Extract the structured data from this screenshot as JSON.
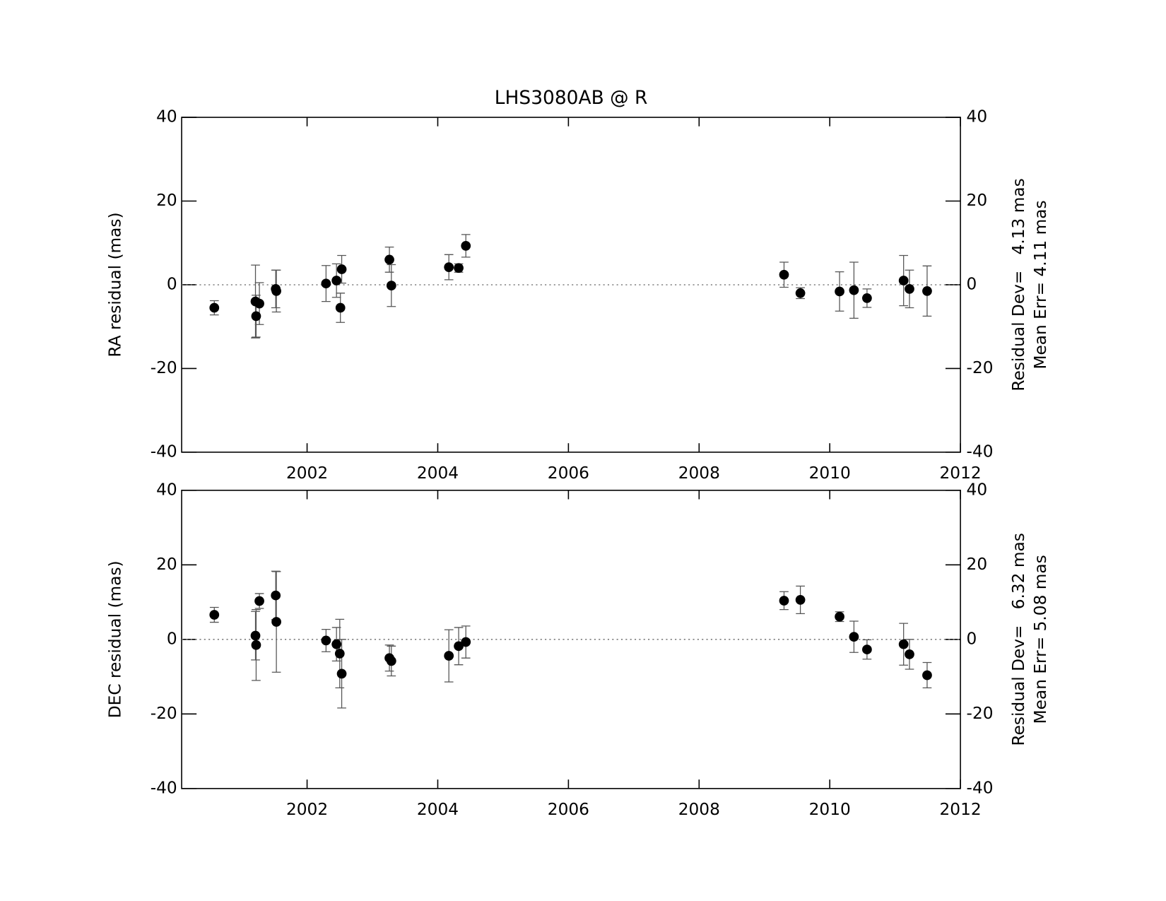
{
  "chart_data": [
    {
      "type": "scatter",
      "title": "LHS3080AB @ R",
      "y_label": "RA residual (mas)",
      "annotations": [
        "Residual Dev=   4.13 mas",
        "Mean Err= 4.11 mas"
      ],
      "color": "#000000",
      "error_color": "#555555",
      "x": [
        2000.58,
        2001.21,
        2001.22,
        2001.27,
        2001.52,
        2001.53,
        2002.29,
        2002.45,
        2002.51,
        2002.53,
        2003.26,
        2003.29,
        2004.17,
        2004.32,
        2004.43,
        2009.3,
        2009.55,
        2010.15,
        2010.37,
        2010.57,
        2011.13,
        2011.22,
        2011.49
      ],
      "values": [
        -5.5,
        -4.0,
        -7.5,
        -4.5,
        -1.0,
        -1.5,
        0.3,
        1.0,
        -5.5,
        3.7,
        6.0,
        -0.2,
        4.2,
        4.0,
        9.3,
        2.4,
        -2.0,
        -1.6,
        -1.3,
        -3.2,
        1.0,
        -1.0,
        -1.5
      ],
      "errors": [
        1.7,
        8.7,
        5.0,
        5.0,
        4.5,
        5.0,
        4.3,
        4.0,
        3.5,
        3.3,
        3.0,
        5.0,
        3.0,
        1.0,
        2.7,
        3.0,
        1.3,
        4.7,
        6.7,
        2.2,
        6.0,
        4.5,
        6.0
      ],
      "xlim": [
        2000.08,
        2012
      ],
      "xticks": [
        2002,
        2004,
        2006,
        2008,
        2010,
        2012
      ],
      "ylim": [
        -40,
        40
      ],
      "yticks": [
        -40,
        -20,
        0,
        20,
        40
      ]
    },
    {
      "type": "scatter",
      "y_label": "DEC residual (mas)",
      "annotations": [
        "Residual Dev=   6.32 mas",
        "Mean Err= 5.08 mas"
      ],
      "color": "#000000",
      "error_color": "#555555",
      "x": [
        2000.58,
        2001.21,
        2001.22,
        2001.27,
        2001.52,
        2001.53,
        2002.29,
        2002.45,
        2002.5,
        2002.53,
        2003.26,
        2003.29,
        2004.17,
        2004.32,
        2004.43,
        2009.3,
        2009.55,
        2010.15,
        2010.37,
        2010.57,
        2011.13,
        2011.22,
        2011.49
      ],
      "values": [
        6.6,
        1.0,
        -1.5,
        10.3,
        11.8,
        4.7,
        -0.3,
        -1.3,
        -3.8,
        -9.2,
        -5.0,
        -5.8,
        -4.4,
        -1.8,
        -0.7,
        10.4,
        10.6,
        6.1,
        0.7,
        -2.7,
        -1.3,
        -4.0,
        -9.6
      ],
      "errors": [
        2.0,
        6.5,
        9.5,
        2.0,
        6.5,
        13.5,
        3.0,
        4.5,
        9.2,
        9.2,
        3.5,
        4.0,
        7.0,
        5.0,
        4.3,
        2.4,
        3.7,
        1.3,
        4.2,
        2.6,
        5.6,
        4.0,
        3.4
      ],
      "xlim": [
        2000.08,
        2012
      ],
      "xticks": [
        2002,
        2004,
        2006,
        2008,
        2010,
        2012
      ],
      "ylim": [
        -40,
        40
      ],
      "yticks": [
        -40,
        -20,
        0,
        20,
        40
      ]
    }
  ]
}
